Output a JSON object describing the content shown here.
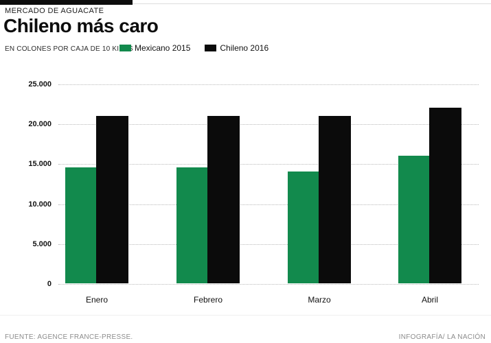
{
  "header": {
    "kicker": "MERCADO DE AGUACATE",
    "title": "Chileno más caro",
    "unit_label": "EN COLONES POR CAJA DE 10 KILOS"
  },
  "chart_data": {
    "type": "bar",
    "title": "Chileno más caro",
    "subtitle": "MERCADO DE AGUACATE",
    "ylabel": "EN COLONES POR CAJA DE 10 KILOS",
    "categories": [
      "Enero",
      "Febrero",
      "Marzo",
      "Abril"
    ],
    "series": [
      {
        "name": "Mexicano 2015",
        "color": "#128a4d",
        "values": [
          14500,
          14500,
          14000,
          16000
        ]
      },
      {
        "name": "Chileno 2016",
        "color": "#0b0b0b",
        "values": [
          21000,
          21000,
          21000,
          22000
        ]
      }
    ],
    "ylim": [
      0,
      25000
    ],
    "ytick_values": [
      0,
      5000,
      10000,
      15000,
      20000,
      25000
    ],
    "ytick_labels": [
      "0",
      "5.000",
      "10.000",
      "15.000",
      "20.000",
      "25.000"
    ],
    "grid": "horizontal-dotted",
    "legend_position": "top"
  },
  "footer": {
    "source": "FUENTE: AGENCE FRANCE-PRESSE.",
    "credit": "INFOGRAFÍA/ LA NACIÓN"
  }
}
